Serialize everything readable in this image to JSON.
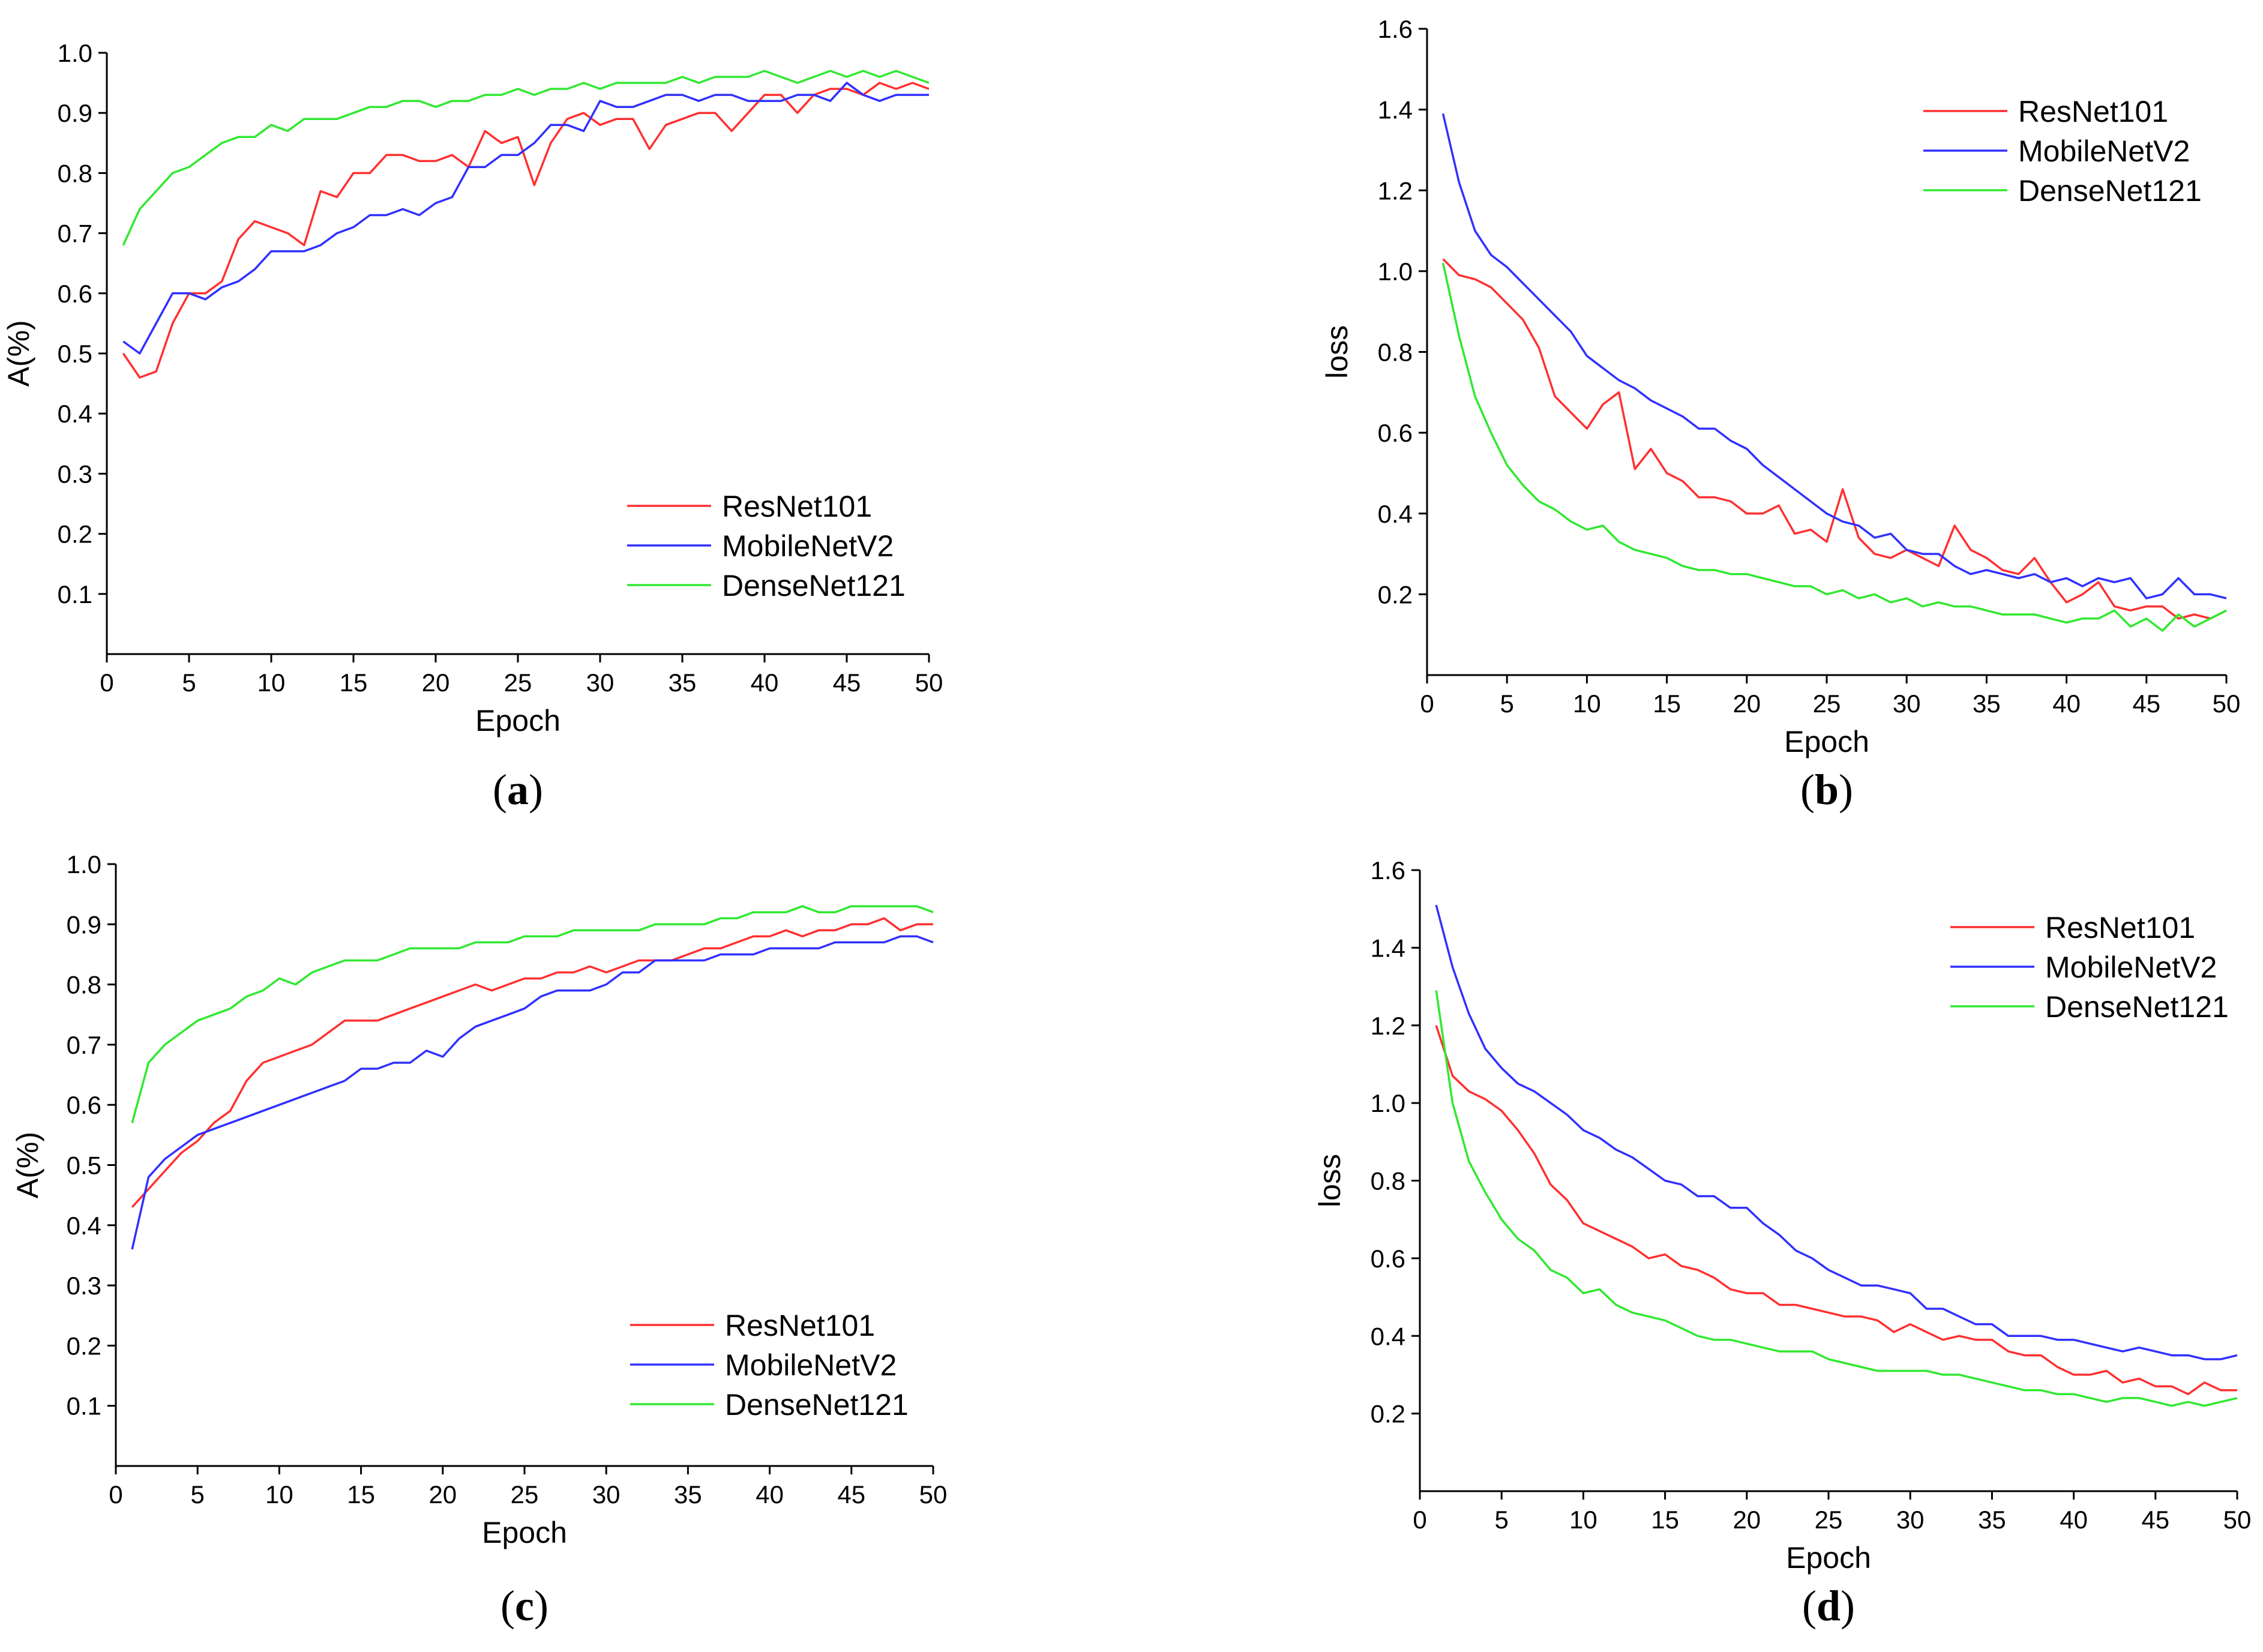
{
  "colors": {
    "ResNet101": "#ff3030",
    "MobileNetV2": "#3030ff",
    "DenseNet121": "#30e830"
  },
  "chart_data": [
    {
      "type": "line",
      "caption": {
        "open": "(",
        "letter": "a",
        "close": ")"
      },
      "xlabel": "Epoch",
      "ylabel": "A(%)",
      "xlim": [
        0,
        50
      ],
      "ylim": [
        0,
        1.0
      ],
      "x_ticks": [
        "0",
        "5",
        "10",
        "15",
        "20",
        "25",
        "30",
        "35",
        "40",
        "45",
        "50"
      ],
      "y_ticks": [
        "0.1",
        "0.2",
        "0.3",
        "0.4",
        "0.5",
        "0.6",
        "0.7",
        "0.8",
        "0.9",
        "1.0"
      ],
      "legend": [
        "ResNet101",
        "MobileNetV2",
        "DenseNet121"
      ],
      "legend_position": "bottom-right",
      "x": [
        1,
        2,
        3,
        4,
        5,
        6,
        7,
        8,
        9,
        10,
        11,
        12,
        13,
        14,
        15,
        16,
        17,
        18,
        19,
        20,
        21,
        22,
        23,
        24,
        25,
        26,
        27,
        28,
        29,
        30,
        31,
        32,
        33,
        34,
        35,
        36,
        37,
        38,
        39,
        40,
        41,
        42,
        43,
        44,
        45,
        46,
        47,
        48,
        49,
        50
      ],
      "series": [
        {
          "name": "ResNet101",
          "values": [
            0.5,
            0.46,
            0.47,
            0.55,
            0.6,
            0.6,
            0.62,
            0.69,
            0.72,
            0.71,
            0.7,
            0.68,
            0.77,
            0.76,
            0.8,
            0.8,
            0.83,
            0.83,
            0.82,
            0.82,
            0.83,
            0.81,
            0.87,
            0.85,
            0.86,
            0.78,
            0.85,
            0.89,
            0.9,
            0.88,
            0.89,
            0.89,
            0.84,
            0.88,
            0.89,
            0.9,
            0.9,
            0.87,
            0.9,
            0.93,
            0.93,
            0.9,
            0.93,
            0.94,
            0.94,
            0.93,
            0.95,
            0.94,
            0.95,
            0.94
          ]
        },
        {
          "name": "MobileNetV2",
          "values": [
            0.52,
            0.5,
            0.55,
            0.6,
            0.6,
            0.59,
            0.61,
            0.62,
            0.64,
            0.67,
            0.67,
            0.67,
            0.68,
            0.7,
            0.71,
            0.73,
            0.73,
            0.74,
            0.73,
            0.75,
            0.76,
            0.81,
            0.81,
            0.83,
            0.83,
            0.85,
            0.88,
            0.88,
            0.87,
            0.92,
            0.91,
            0.91,
            0.92,
            0.93,
            0.93,
            0.92,
            0.93,
            0.93,
            0.92,
            0.92,
            0.92,
            0.93,
            0.93,
            0.92,
            0.95,
            0.93,
            0.92,
            0.93,
            0.93,
            0.93
          ]
        },
        {
          "name": "DenseNet121",
          "values": [
            0.68,
            0.74,
            0.77,
            0.8,
            0.81,
            0.83,
            0.85,
            0.86,
            0.86,
            0.88,
            0.87,
            0.89,
            0.89,
            0.89,
            0.9,
            0.91,
            0.91,
            0.92,
            0.92,
            0.91,
            0.92,
            0.92,
            0.93,
            0.93,
            0.94,
            0.93,
            0.94,
            0.94,
            0.95,
            0.94,
            0.95,
            0.95,
            0.95,
            0.95,
            0.96,
            0.95,
            0.96,
            0.96,
            0.96,
            0.97,
            0.96,
            0.95,
            0.96,
            0.97,
            0.96,
            0.97,
            0.96,
            0.97,
            0.96,
            0.95
          ]
        }
      ]
    },
    {
      "type": "line",
      "caption": {
        "open": "(",
        "letter": "b",
        "close": ")"
      },
      "xlabel": "Epoch",
      "ylabel": "loss",
      "xlim": [
        0,
        50
      ],
      "ylim": [
        0,
        1.6
      ],
      "x_ticks": [
        "0",
        "5",
        "10",
        "15",
        "20",
        "25",
        "30",
        "35",
        "40",
        "45",
        "50"
      ],
      "y_ticks": [
        "0.2",
        "0.4",
        "0.6",
        "0.8",
        "1.0",
        "1.2",
        "1.4",
        "1.6"
      ],
      "legend": [
        "ResNet101",
        "MobileNetV2",
        "DenseNet121"
      ],
      "legend_position": "top-right",
      "x": [
        1,
        2,
        3,
        4,
        5,
        6,
        7,
        8,
        9,
        10,
        11,
        12,
        13,
        14,
        15,
        16,
        17,
        18,
        19,
        20,
        21,
        22,
        23,
        24,
        25,
        26,
        27,
        28,
        29,
        30,
        31,
        32,
        33,
        34,
        35,
        36,
        37,
        38,
        39,
        40,
        41,
        42,
        43,
        44,
        45,
        46,
        47,
        48,
        49,
        50
      ],
      "series": [
        {
          "name": "ResNet101",
          "values": [
            1.03,
            0.99,
            0.98,
            0.96,
            0.92,
            0.88,
            0.81,
            0.69,
            0.65,
            0.61,
            0.67,
            0.7,
            0.51,
            0.56,
            0.5,
            0.48,
            0.44,
            0.44,
            0.43,
            0.4,
            0.4,
            0.42,
            0.35,
            0.36,
            0.33,
            0.46,
            0.34,
            0.3,
            0.29,
            0.31,
            0.29,
            0.27,
            0.37,
            0.31,
            0.29,
            0.26,
            0.25,
            0.29,
            0.23,
            0.18,
            0.2,
            0.23,
            0.17,
            0.16,
            0.17,
            0.17,
            0.14,
            0.15,
            0.14,
            0.16
          ]
        },
        {
          "name": "MobileNetV2",
          "values": [
            1.39,
            1.22,
            1.1,
            1.04,
            1.01,
            0.97,
            0.93,
            0.89,
            0.85,
            0.79,
            0.76,
            0.73,
            0.71,
            0.68,
            0.66,
            0.64,
            0.61,
            0.61,
            0.58,
            0.56,
            0.52,
            0.49,
            0.46,
            0.43,
            0.4,
            0.38,
            0.37,
            0.34,
            0.35,
            0.31,
            0.3,
            0.3,
            0.27,
            0.25,
            0.26,
            0.25,
            0.24,
            0.25,
            0.23,
            0.24,
            0.22,
            0.24,
            0.23,
            0.24,
            0.19,
            0.2,
            0.24,
            0.2,
            0.2,
            0.19
          ]
        },
        {
          "name": "DenseNet121",
          "values": [
            1.02,
            0.84,
            0.69,
            0.6,
            0.52,
            0.47,
            0.43,
            0.41,
            0.38,
            0.36,
            0.37,
            0.33,
            0.31,
            0.3,
            0.29,
            0.27,
            0.26,
            0.26,
            0.25,
            0.25,
            0.24,
            0.23,
            0.22,
            0.22,
            0.2,
            0.21,
            0.19,
            0.2,
            0.18,
            0.19,
            0.17,
            0.18,
            0.17,
            0.17,
            0.16,
            0.15,
            0.15,
            0.15,
            0.14,
            0.13,
            0.14,
            0.14,
            0.16,
            0.12,
            0.14,
            0.11,
            0.15,
            0.12,
            0.14,
            0.16
          ]
        }
      ]
    },
    {
      "type": "line",
      "caption": {
        "open": "(",
        "letter": "c",
        "close": ")"
      },
      "xlabel": "Epoch",
      "ylabel": "A(%)",
      "xlim": [
        0,
        50
      ],
      "ylim": [
        0,
        1.0
      ],
      "x_ticks": [
        "0",
        "5",
        "10",
        "15",
        "20",
        "25",
        "30",
        "35",
        "40",
        "45",
        "50"
      ],
      "y_ticks": [
        "0.1",
        "0.2",
        "0.3",
        "0.4",
        "0.5",
        "0.6",
        "0.7",
        "0.8",
        "0.9",
        "1.0"
      ],
      "legend": [
        "ResNet101",
        "MobileNetV2",
        "DenseNet121"
      ],
      "legend_position": "bottom-right",
      "x": [
        1,
        2,
        3,
        4,
        5,
        6,
        7,
        8,
        9,
        10,
        11,
        12,
        13,
        14,
        15,
        16,
        17,
        18,
        19,
        20,
        21,
        22,
        23,
        24,
        25,
        26,
        27,
        28,
        29,
        30,
        31,
        32,
        33,
        34,
        35,
        36,
        37,
        38,
        39,
        40,
        41,
        42,
        43,
        44,
        45,
        46,
        47,
        48,
        49,
        50
      ],
      "series": [
        {
          "name": "ResNet101",
          "values": [
            0.43,
            0.46,
            0.49,
            0.52,
            0.54,
            0.57,
            0.59,
            0.64,
            0.67,
            0.68,
            0.69,
            0.7,
            0.72,
            0.74,
            0.74,
            0.74,
            0.75,
            0.76,
            0.77,
            0.78,
            0.79,
            0.8,
            0.79,
            0.8,
            0.81,
            0.81,
            0.82,
            0.82,
            0.83,
            0.82,
            0.83,
            0.84,
            0.84,
            0.84,
            0.85,
            0.86,
            0.86,
            0.87,
            0.88,
            0.88,
            0.89,
            0.88,
            0.89,
            0.89,
            0.9,
            0.9,
            0.91,
            0.89,
            0.9,
            0.9
          ]
        },
        {
          "name": "MobileNetV2",
          "values": [
            0.36,
            0.48,
            0.51,
            0.53,
            0.55,
            0.56,
            0.57,
            0.58,
            0.59,
            0.6,
            0.61,
            0.62,
            0.63,
            0.64,
            0.66,
            0.66,
            0.67,
            0.67,
            0.69,
            0.68,
            0.71,
            0.73,
            0.74,
            0.75,
            0.76,
            0.78,
            0.79,
            0.79,
            0.79,
            0.8,
            0.82,
            0.82,
            0.84,
            0.84,
            0.84,
            0.84,
            0.85,
            0.85,
            0.85,
            0.86,
            0.86,
            0.86,
            0.86,
            0.87,
            0.87,
            0.87,
            0.87,
            0.88,
            0.88,
            0.87
          ]
        },
        {
          "name": "DenseNet121",
          "values": [
            0.57,
            0.67,
            0.7,
            0.72,
            0.74,
            0.75,
            0.76,
            0.78,
            0.79,
            0.81,
            0.8,
            0.82,
            0.83,
            0.84,
            0.84,
            0.84,
            0.85,
            0.86,
            0.86,
            0.86,
            0.86,
            0.87,
            0.87,
            0.87,
            0.88,
            0.88,
            0.88,
            0.89,
            0.89,
            0.89,
            0.89,
            0.89,
            0.9,
            0.9,
            0.9,
            0.9,
            0.91,
            0.91,
            0.92,
            0.92,
            0.92,
            0.93,
            0.92,
            0.92,
            0.93,
            0.93,
            0.93,
            0.93,
            0.93,
            0.92
          ]
        }
      ]
    },
    {
      "type": "line",
      "caption": {
        "open": "(",
        "letter": "d",
        "close": ")"
      },
      "xlabel": "Epoch",
      "ylabel": "loss",
      "xlim": [
        0,
        50
      ],
      "ylim": [
        0,
        1.6
      ],
      "x_ticks": [
        "0",
        "5",
        "10",
        "15",
        "20",
        "25",
        "30",
        "35",
        "40",
        "45",
        "50"
      ],
      "y_ticks": [
        "0.2",
        "0.4",
        "0.6",
        "0.8",
        "1.0",
        "1.2",
        "1.4",
        "1.6"
      ],
      "legend": [
        "ResNet101",
        "MobileNetV2",
        "DenseNet121"
      ],
      "legend_position": "top-right",
      "x": [
        1,
        2,
        3,
        4,
        5,
        6,
        7,
        8,
        9,
        10,
        11,
        12,
        13,
        14,
        15,
        16,
        17,
        18,
        19,
        20,
        21,
        22,
        23,
        24,
        25,
        26,
        27,
        28,
        29,
        30,
        31,
        32,
        33,
        34,
        35,
        36,
        37,
        38,
        39,
        40,
        41,
        42,
        43,
        44,
        45,
        46,
        47,
        48,
        49,
        50
      ],
      "series": [
        {
          "name": "ResNet101",
          "values": [
            1.2,
            1.07,
            1.03,
            1.01,
            0.98,
            0.93,
            0.87,
            0.79,
            0.75,
            0.69,
            0.67,
            0.65,
            0.63,
            0.6,
            0.61,
            0.58,
            0.57,
            0.55,
            0.52,
            0.51,
            0.51,
            0.48,
            0.48,
            0.47,
            0.46,
            0.45,
            0.45,
            0.44,
            0.41,
            0.43,
            0.41,
            0.39,
            0.4,
            0.39,
            0.39,
            0.36,
            0.35,
            0.35,
            0.32,
            0.3,
            0.3,
            0.31,
            0.28,
            0.29,
            0.27,
            0.27,
            0.25,
            0.28,
            0.26,
            0.26
          ]
        },
        {
          "name": "MobileNetV2",
          "values": [
            1.51,
            1.35,
            1.23,
            1.14,
            1.09,
            1.05,
            1.03,
            1.0,
            0.97,
            0.93,
            0.91,
            0.88,
            0.86,
            0.83,
            0.8,
            0.79,
            0.76,
            0.76,
            0.73,
            0.73,
            0.69,
            0.66,
            0.62,
            0.6,
            0.57,
            0.55,
            0.53,
            0.53,
            0.52,
            0.51,
            0.47,
            0.47,
            0.45,
            0.43,
            0.43,
            0.4,
            0.4,
            0.4,
            0.39,
            0.39,
            0.38,
            0.37,
            0.36,
            0.37,
            0.36,
            0.35,
            0.35,
            0.34,
            0.34,
            0.35
          ]
        },
        {
          "name": "DenseNet121",
          "values": [
            1.29,
            1.0,
            0.85,
            0.77,
            0.7,
            0.65,
            0.62,
            0.57,
            0.55,
            0.51,
            0.52,
            0.48,
            0.46,
            0.45,
            0.44,
            0.42,
            0.4,
            0.39,
            0.39,
            0.38,
            0.37,
            0.36,
            0.36,
            0.36,
            0.34,
            0.33,
            0.32,
            0.31,
            0.31,
            0.31,
            0.31,
            0.3,
            0.3,
            0.29,
            0.28,
            0.27,
            0.26,
            0.26,
            0.25,
            0.25,
            0.24,
            0.23,
            0.24,
            0.24,
            0.23,
            0.22,
            0.23,
            0.22,
            0.23,
            0.24
          ]
        }
      ]
    }
  ]
}
